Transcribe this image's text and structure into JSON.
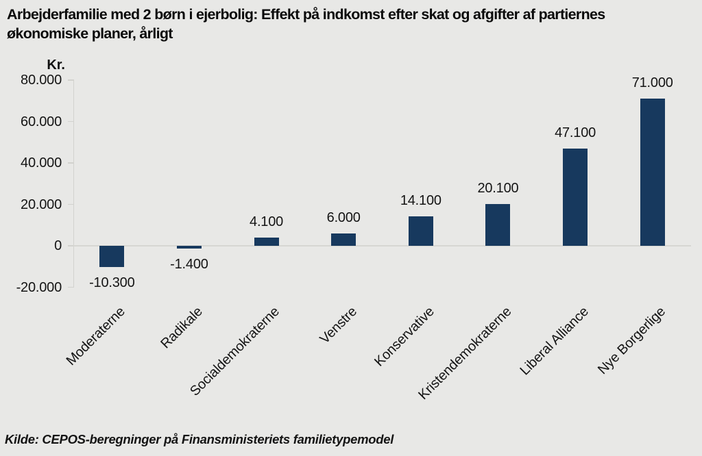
{
  "title": {
    "line1": "Arbejderfamilie med 2 børn i ejerbolig: Effekt på indkomst efter skat og afgifter af partiernes",
    "line2": "økonomiske planer, årligt"
  },
  "y_axis": {
    "unit_label": "Kr.",
    "ticks": [
      "80.000",
      "60.000",
      "40.000",
      "20.000",
      "0",
      "-20.000"
    ]
  },
  "source": "Kilde: CEPOS-beregninger på Finansministeriets familietypemodel",
  "colors": {
    "bar": "#17395E",
    "background": "#E8E8E6",
    "axis_line": "#D2D2CE",
    "text": "#141414"
  },
  "chart_data": {
    "type": "bar",
    "title": "Arbejderfamilie med 2 børn i ejerbolig: Effekt på indkomst efter skat og afgifter af partiernes økonomiske planer, årligt",
    "xlabel": "",
    "ylabel": "Kr.",
    "ylim": [
      -20000,
      80000
    ],
    "ytick_step": 20000,
    "grid": false,
    "legend": "none",
    "categories": [
      "Moderaterne",
      "Radikale",
      "Socialdemokraterne",
      "Venstre",
      "Konservative",
      "Kristendemokraterne",
      "Liberal Alliance",
      "Nye Borgerlige"
    ],
    "values": [
      -10300,
      -1400,
      4100,
      6000,
      14100,
      20100,
      47100,
      71000
    ],
    "value_labels": [
      "-10.300",
      "-1.400",
      "4.100",
      "6.000",
      "14.100",
      "20.100",
      "47.100",
      "71.000"
    ]
  }
}
